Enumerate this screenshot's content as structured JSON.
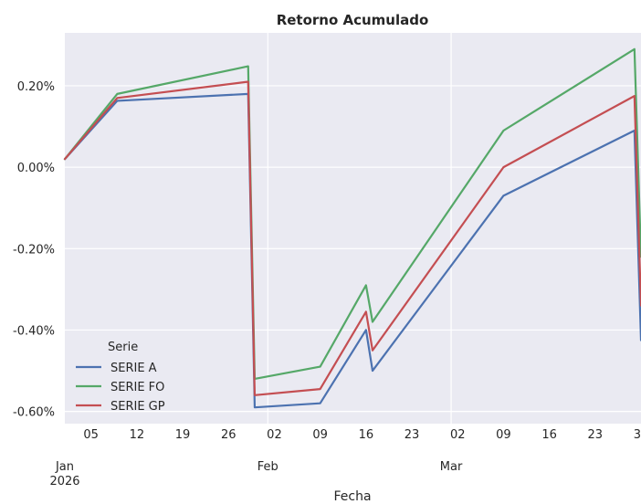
{
  "chart_data": {
    "type": "line",
    "title": "Retorno Acumulado",
    "xlabel": "Fecha",
    "ylabel": "",
    "ylim": [
      -0.63,
      0.33
    ],
    "xlim": [
      "2026-01-01",
      "2026-03-30"
    ],
    "grid": true,
    "legend_title": "Serie",
    "legend_position": "lower-left",
    "x_ticks": [
      {
        "date": "2026-01-01",
        "label": "Jan",
        "label2": "2026"
      },
      {
        "date": "2026-01-05",
        "label": "05"
      },
      {
        "date": "2026-01-12",
        "label": "12"
      },
      {
        "date": "2026-01-19",
        "label": "19"
      },
      {
        "date": "2026-01-26",
        "label": "26"
      },
      {
        "date": "2026-02-01",
        "label": "Feb"
      },
      {
        "date": "2026-02-02",
        "label": "02"
      },
      {
        "date": "2026-02-09",
        "label": "09"
      },
      {
        "date": "2026-02-16",
        "label": "16"
      },
      {
        "date": "2026-02-23",
        "label": "23"
      },
      {
        "date": "2026-03-01",
        "label": "Mar"
      },
      {
        "date": "2026-03-02",
        "label": "02"
      },
      {
        "date": "2026-03-09",
        "label": "09"
      },
      {
        "date": "2026-03-16",
        "label": "16"
      },
      {
        "date": "2026-03-23",
        "label": "23"
      },
      {
        "date": "2026-03-30",
        "label": "30"
      }
    ],
    "major_gridlines": [
      "2026-02-01",
      "2026-03-01"
    ],
    "y_ticks": [
      {
        "value": 0.2,
        "label": "0.20%"
      },
      {
        "value": 0.0,
        "label": "0.00%"
      },
      {
        "value": -0.2,
        "label": "-0.20%"
      },
      {
        "value": -0.4,
        "label": "-0.40%"
      },
      {
        "value": -0.6,
        "label": "-0.60%"
      }
    ],
    "series": [
      {
        "name": "SERIE A",
        "color": "#4c72b0",
        "points": [
          [
            "2026-01-01",
            0.02
          ],
          [
            "2026-01-09",
            0.163
          ],
          [
            "2026-01-29",
            0.18
          ],
          [
            "2026-01-30",
            -0.59
          ],
          [
            "2026-02-09",
            -0.58
          ],
          [
            "2026-02-16",
            -0.4
          ],
          [
            "2026-02-17",
            -0.5
          ],
          [
            "2026-03-09",
            -0.07
          ],
          [
            "2026-03-29",
            0.09
          ],
          [
            "2026-03-30",
            -0.425
          ],
          [
            "2026-03-31",
            -0.42
          ]
        ]
      },
      {
        "name": "SERIE FO",
        "color": "#55a868",
        "points": [
          [
            "2026-01-01",
            0.02
          ],
          [
            "2026-01-09",
            0.18
          ],
          [
            "2026-01-29",
            0.248
          ],
          [
            "2026-01-30",
            -0.52
          ],
          [
            "2026-02-09",
            -0.49
          ],
          [
            "2026-02-16",
            -0.29
          ],
          [
            "2026-02-17",
            -0.38
          ],
          [
            "2026-03-09",
            0.09
          ],
          [
            "2026-03-29",
            0.29
          ],
          [
            "2026-03-30",
            -0.22
          ],
          [
            "2026-03-31",
            -0.21
          ]
        ]
      },
      {
        "name": "SERIE GP",
        "color": "#c44e52",
        "points": [
          [
            "2026-01-01",
            0.02
          ],
          [
            "2026-01-09",
            0.17
          ],
          [
            "2026-01-29",
            0.21
          ],
          [
            "2026-01-30",
            -0.56
          ],
          [
            "2026-02-09",
            -0.545
          ],
          [
            "2026-02-16",
            -0.355
          ],
          [
            "2026-02-17",
            -0.45
          ],
          [
            "2026-03-09",
            0.0
          ],
          [
            "2026-03-29",
            0.175
          ],
          [
            "2026-03-30",
            -0.34
          ],
          [
            "2026-03-31",
            -0.335
          ]
        ]
      }
    ],
    "colors": {
      "background": "#ffffff",
      "plot_background": "#eaeaf2",
      "grid": "#ffffff",
      "text": "#262626"
    }
  }
}
